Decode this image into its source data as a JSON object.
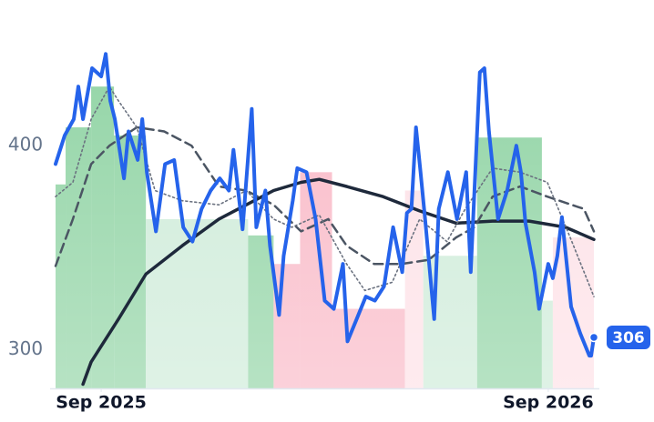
{
  "chart_data": {
    "type": "line",
    "xlim": [
      0,
      59
    ],
    "ylim": [
      281,
      471
    ],
    "yticks": [
      300,
      400
    ],
    "xticks": [
      {
        "value": 5,
        "label": "Sep 2025"
      },
      {
        "value": 54,
        "label": "Sep 2026"
      }
    ],
    "regions": [
      {
        "start": 0,
        "end": 1.1,
        "value": 381,
        "color": "#8fd3a3"
      },
      {
        "start": 1.1,
        "end": 3.9,
        "value": 409,
        "color": "#8fd3a3"
      },
      {
        "start": 3.9,
        "end": 6.4,
        "value": 429,
        "color": "#8fd3a3"
      },
      {
        "start": 6.4,
        "end": 9.9,
        "value": 405,
        "color": "#8fd3a3"
      },
      {
        "start": 9.9,
        "end": 21.1,
        "value": 364,
        "color": "#cdebd8"
      },
      {
        "start": 21.1,
        "end": 23.9,
        "value": 356,
        "color": "#8fd3a3"
      },
      {
        "start": 23.9,
        "end": 26.8,
        "value": 342,
        "color": "#f9b8c6"
      },
      {
        "start": 26.8,
        "end": 30.3,
        "value": 387,
        "color": "#f9b8c6"
      },
      {
        "start": 30.3,
        "end": 38.3,
        "value": 320,
        "color": "#f9b8c6"
      },
      {
        "start": 38.3,
        "end": 40.3,
        "value": 378,
        "color": "#fde0e6"
      },
      {
        "start": 40.3,
        "end": 46.2,
        "value": 346,
        "color": "#cdebd8"
      },
      {
        "start": 46.2,
        "end": 53.3,
        "value": 404,
        "color": "#8fd3a3"
      },
      {
        "start": 53.3,
        "end": 54.5,
        "value": 324,
        "color": "#cdebd8"
      },
      {
        "start": 54.5,
        "end": 59,
        "value": 355,
        "color": "#fde0e6"
      }
    ],
    "series": [
      {
        "color": "#1e293b",
        "style": "solid",
        "width": 3.5,
        "x": [
          3,
          3.9,
          6.9,
          9.9,
          13.9,
          17.9,
          20.9,
          23.9,
          26.9,
          28.9,
          31.9,
          35.9,
          39.9,
          43.9,
          47.9,
          51.9,
          55.9,
          59
        ],
        "values": [
          283,
          294,
          315,
          337,
          351,
          364,
          371,
          378,
          382,
          383.5,
          380,
          375,
          368,
          362,
          363,
          363,
          360,
          354
        ]
      },
      {
        "color": "#4b5563",
        "style": "dashed",
        "width": 2.5,
        "x": [
          0,
          1.9,
          3.9,
          5.9,
          8.9,
          11.9,
          14.9,
          17.9,
          20.9,
          23.9,
          26.9,
          29.9,
          31.9,
          34.9,
          37.9,
          40.9,
          43.9,
          45.9,
          47.9,
          50.9,
          53.9,
          57.9,
          59
        ],
        "values": [
          341,
          364,
          391,
          400,
          409,
          407,
          400,
          380,
          378,
          371,
          358,
          364,
          351,
          342,
          342,
          344,
          355,
          360,
          375,
          380,
          375,
          369,
          358
        ]
      },
      {
        "color": "#6b7280",
        "style": "dotted",
        "width": 1.6,
        "x": [
          0,
          1.9,
          3.9,
          5.9,
          6.9,
          8.9,
          10.9,
          13.9,
          17.9,
          20.9,
          23.9,
          25.9,
          28.9,
          31.9,
          33.9,
          36.9,
          39.9,
          42.9,
          44.9,
          47.9,
          50.9,
          53.9,
          56.4,
          59
        ],
        "values": [
          375,
          382,
          413,
          429,
          422,
          409,
          378,
          373,
          371,
          378,
          364,
          360,
          366,
          342,
          329,
          333,
          364,
          353,
          369,
          389,
          387,
          382,
          355,
          326
        ]
      },
      {
        "color": "#2563eb",
        "style": "solid",
        "width": 4,
        "x": [
          0,
          1,
          2,
          2.5,
          3,
          4,
          5,
          5.5,
          6,
          6.5,
          7.5,
          8,
          9,
          9.5,
          10,
          11,
          12,
          13,
          14,
          15,
          16,
          17,
          18,
          19,
          19.5,
          20.5,
          21.5,
          22,
          23,
          23.5,
          24.5,
          25,
          26,
          26.5,
          27.5,
          28.5,
          29.5,
          30.5,
          31.5,
          32,
          33,
          34,
          35,
          36,
          37,
          38,
          38.5,
          39,
          39.5,
          40,
          40.5,
          41.5,
          42,
          43,
          44,
          45,
          45.5,
          46,
          46.5,
          47,
          47.5,
          48.5,
          49.5,
          50.5,
          51,
          51.5,
          52.5,
          53,
          54,
          54.5,
          55,
          55.5,
          56.5,
          57.5,
          58.5,
          58.7,
          59
        ],
        "values": [
          391,
          405,
          413,
          429,
          413,
          438,
          434,
          445,
          422,
          413,
          384,
          407,
          393,
          413,
          387,
          358,
          391,
          393,
          360,
          353,
          369,
          378,
          384,
          378,
          398,
          359,
          418,
          360,
          378,
          351,
          317,
          346,
          373,
          389,
          387,
          364,
          324,
          320,
          342,
          304,
          315,
          326,
          324,
          331,
          360,
          338,
          367,
          369,
          409,
          387,
          364,
          315,
          369,
          387,
          364,
          387,
          338,
          387,
          436,
          438,
          407,
          364,
          378,
          400,
          387,
          362,
          338,
          320,
          342,
          335,
          346,
          365,
          321,
          308,
          297,
          297,
          306
        ]
      }
    ]
  }
}
